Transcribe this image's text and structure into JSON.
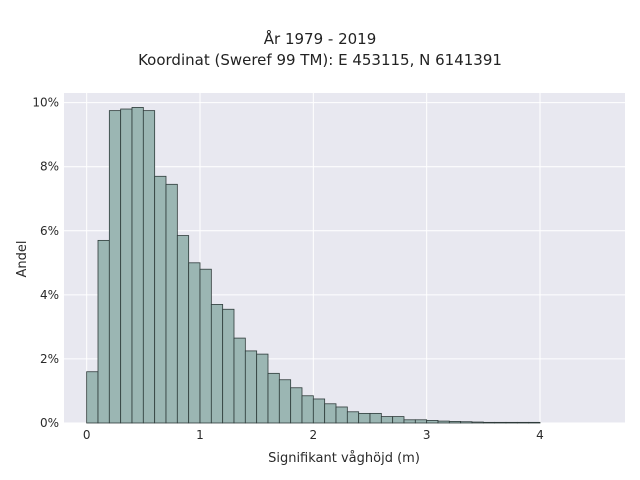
{
  "chart_data": {
    "type": "bar",
    "title_lines": [
      "År 1979 - 2019",
      "Koordinat (Sweref 99 TM): E 453115, N 6141391"
    ],
    "xlabel": "Signifikant våghöjd (m)",
    "ylabel": "Andel",
    "xlim": [
      -0.2,
      4.75
    ],
    "ylim": [
      0,
      10.3
    ],
    "x_ticks": [
      0,
      1,
      2,
      3,
      4
    ],
    "y_ticks": [
      0,
      2,
      4,
      6,
      8,
      10
    ],
    "y_tick_labels": [
      "0%",
      "2%",
      "4%",
      "6%",
      "8%",
      "10%"
    ],
    "bin_width": 0.1,
    "bin_starts": [
      0.0,
      0.1,
      0.2,
      0.3,
      0.4,
      0.5,
      0.6,
      0.7,
      0.8,
      0.9,
      1.0,
      1.1,
      1.2,
      1.3,
      1.4,
      1.5,
      1.6,
      1.7,
      1.8,
      1.9,
      2.0,
      2.1,
      2.2,
      2.3,
      2.4,
      2.5,
      2.6,
      2.7,
      2.8,
      2.9,
      3.0,
      3.1,
      3.2,
      3.3,
      3.4,
      3.5,
      3.6,
      3.7,
      3.8,
      3.9
    ],
    "values": [
      1.6,
      5.7,
      9.75,
      9.8,
      9.85,
      9.75,
      7.7,
      7.45,
      5.85,
      5.0,
      4.8,
      3.7,
      3.55,
      2.65,
      2.25,
      2.15,
      1.55,
      1.35,
      1.1,
      0.85,
      0.75,
      0.6,
      0.5,
      0.35,
      0.3,
      0.3,
      0.2,
      0.2,
      0.1,
      0.1,
      0.08,
      0.06,
      0.05,
      0.04,
      0.03,
      0.02,
      0.02,
      0.02,
      0.02,
      0.02
    ],
    "bar_color": "#9bb6b3",
    "bar_edge_color": "#2e3b3a",
    "plot_background": "#e8e8f0",
    "grid": true,
    "grid_color": "#ffffff"
  }
}
